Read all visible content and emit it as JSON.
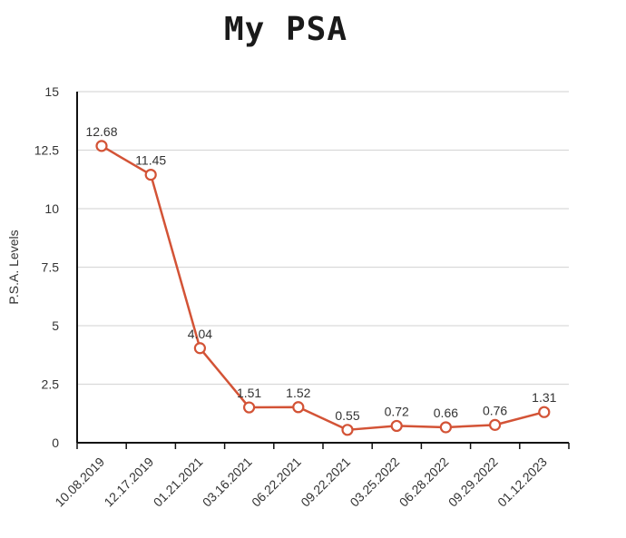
{
  "chart_data": {
    "type": "line",
    "title": "My PSA",
    "ylabel": "P.S.A. Levels",
    "xlabel": "",
    "ylim": [
      0,
      15
    ],
    "yticks": [
      "0",
      "2.5",
      "5",
      "7.5",
      "10",
      "12.5",
      "15"
    ],
    "categories": [
      "10.08.2019",
      "12.17.2019",
      "01.21.2021",
      "03.16.2021",
      "06.22.2021",
      "09.22.2021",
      "03.25.2022",
      "06.28.2022",
      "09.29.2022",
      "01.12.2023"
    ],
    "values": [
      12.68,
      11.45,
      4.04,
      1.51,
      1.52,
      0.55,
      0.72,
      0.66,
      0.76,
      1.31
    ],
    "value_labels": [
      "12.68",
      "11.45",
      "4.04",
      "1.51",
      "1.52",
      "0.55",
      "0.72",
      "0.66",
      "0.76",
      "1.31"
    ],
    "grid": true,
    "line_color": "#d35336"
  }
}
